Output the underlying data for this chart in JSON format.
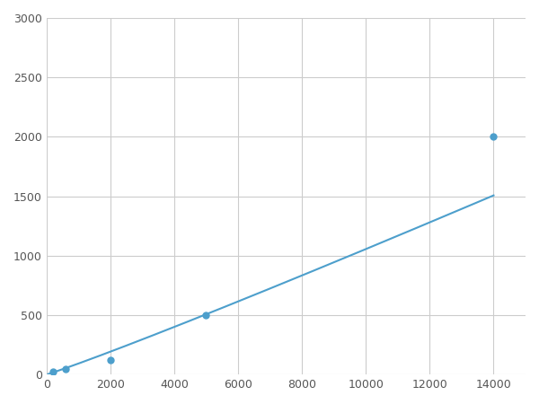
{
  "x_data": [
    200,
    600,
    2000,
    5000,
    14000
  ],
  "y_data": [
    23,
    46,
    125,
    500,
    2000
  ],
  "line_color": "#4d9fcc",
  "marker_color": "#4d9fcc",
  "marker_style": "o",
  "marker_size": 5,
  "line_width": 1.5,
  "xlim": [
    0,
    15000
  ],
  "ylim": [
    0,
    3000
  ],
  "xticks": [
    0,
    2000,
    4000,
    6000,
    8000,
    10000,
    12000,
    14000
  ],
  "yticks": [
    0,
    500,
    1000,
    1500,
    2000,
    2500,
    3000
  ],
  "grid_color": "#cccccc",
  "grid_linewidth": 0.8,
  "background_color": "#ffffff",
  "figsize": [
    6.0,
    4.5
  ],
  "dpi": 100
}
